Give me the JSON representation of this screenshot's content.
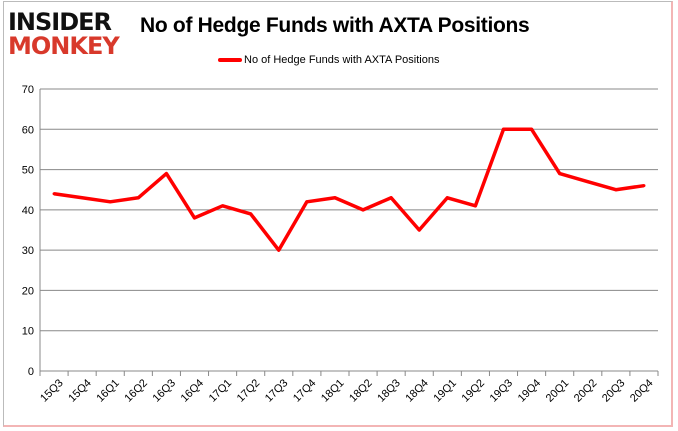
{
  "logo": {
    "line1": "INSIDER",
    "line2": "MONKEY"
  },
  "chart_data": {
    "type": "line",
    "title": "No of Hedge Funds with AXTA Positions",
    "xlabel": "",
    "ylabel": "",
    "ylim": [
      0,
      70
    ],
    "yticks": [
      0,
      10,
      20,
      30,
      40,
      50,
      60,
      70
    ],
    "grid": true,
    "legend": "top",
    "categories": [
      "15Q3",
      "15Q4",
      "16Q1",
      "16Q2",
      "16Q3",
      "16Q4",
      "17Q1",
      "17Q2",
      "17Q3",
      "17Q4",
      "18Q1",
      "18Q2",
      "18Q3",
      "18Q4",
      "19Q1",
      "19Q2",
      "19Q3",
      "19Q4",
      "20Q1",
      "20Q2",
      "20Q3",
      "20Q4"
    ],
    "series": [
      {
        "name": "No of Hedge Funds with AXTA Positions",
        "color": "#ff0000",
        "values": [
          44,
          43,
          42,
          43,
          49,
          38,
          41,
          39,
          30,
          42,
          43,
          40,
          43,
          35,
          43,
          41,
          60,
          60,
          49,
          47,
          45,
          46
        ]
      }
    ]
  }
}
